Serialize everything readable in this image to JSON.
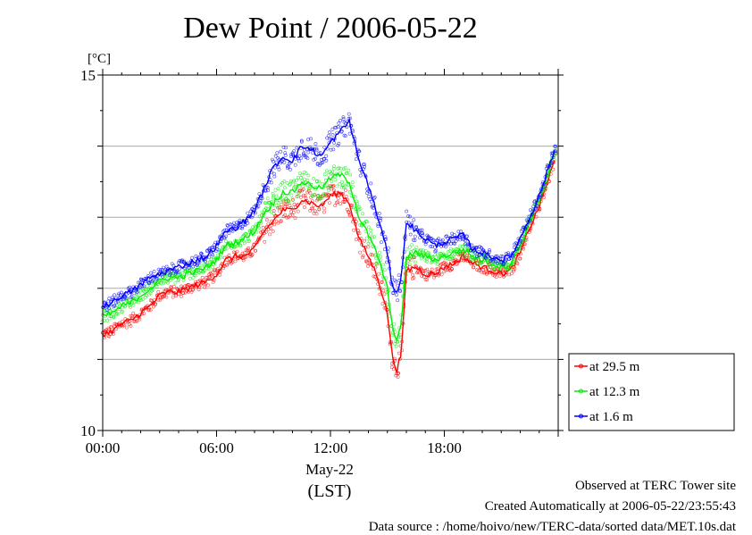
{
  "chart_data": {
    "type": "line",
    "title": "Dew Point / 2006-05-22",
    "ylabel": "[°C]",
    "xlabel": "(LST)",
    "date_label": "May-22",
    "ylim": [
      10,
      15
    ],
    "yticks": [
      10,
      15
    ],
    "xlim_hours": [
      0,
      24
    ],
    "xtick_labels": [
      "00:00",
      "06:00",
      "12:00",
      "18:00"
    ],
    "grid": "horizontal",
    "legend_position": "bottom-right",
    "series": [
      {
        "name": "at 29.5 m",
        "color": "#ff0000",
        "x": [
          0,
          0.5,
          1,
          1.5,
          2,
          2.5,
          3,
          3.5,
          4,
          4.5,
          5,
          5.5,
          6,
          6.5,
          7,
          7.5,
          8,
          8.5,
          9,
          9.5,
          10,
          10.5,
          11,
          11.5,
          12,
          12.5,
          13,
          13.5,
          14,
          14.5,
          15,
          15.25,
          15.5,
          15.75,
          16,
          16.5,
          17,
          17.5,
          18,
          18.5,
          19,
          19.5,
          20,
          20.5,
          21,
          21.5,
          22,
          22.5,
          23,
          23.5
        ],
        "y": [
          11.35,
          11.4,
          11.5,
          11.55,
          11.65,
          11.75,
          11.9,
          11.95,
          11.95,
          12.0,
          12.05,
          12.1,
          12.2,
          12.4,
          12.45,
          12.45,
          12.55,
          12.8,
          12.95,
          13.1,
          13.1,
          13.25,
          13.2,
          13.15,
          13.3,
          13.35,
          13.2,
          12.7,
          12.45,
          12.15,
          11.65,
          11.05,
          10.85,
          11.1,
          12.25,
          12.3,
          12.2,
          12.2,
          12.3,
          12.35,
          12.45,
          12.35,
          12.3,
          12.25,
          12.2,
          12.25,
          12.5,
          12.85,
          13.15,
          13.55
        ]
      },
      {
        "name": "at 12.3 m",
        "color": "#00ee00",
        "x": [
          0,
          0.5,
          1,
          1.5,
          2,
          2.5,
          3,
          3.5,
          4,
          4.5,
          5,
          5.5,
          6,
          6.5,
          7,
          7.5,
          8,
          8.5,
          9,
          9.5,
          10,
          10.5,
          11,
          11.5,
          12,
          12.5,
          13,
          13.5,
          14,
          14.5,
          15,
          15.25,
          15.5,
          15.75,
          16,
          16.5,
          17,
          17.5,
          18,
          18.5,
          19,
          19.5,
          20,
          20.5,
          21,
          21.5,
          22,
          22.5,
          23,
          23.5
        ],
        "y": [
          11.6,
          11.65,
          11.75,
          11.8,
          11.9,
          12.0,
          12.1,
          12.15,
          12.15,
          12.2,
          12.25,
          12.3,
          12.4,
          12.6,
          12.65,
          12.7,
          12.8,
          13.05,
          13.2,
          13.35,
          13.35,
          13.5,
          13.45,
          13.4,
          13.55,
          13.6,
          13.5,
          13.0,
          12.75,
          12.45,
          12.0,
          11.45,
          11.3,
          11.5,
          12.45,
          12.5,
          12.45,
          12.4,
          12.45,
          12.5,
          12.55,
          12.45,
          12.4,
          12.35,
          12.3,
          12.35,
          12.6,
          12.95,
          13.25,
          13.65
        ]
      },
      {
        "name": "at 1.6 m",
        "color": "#0000ff",
        "x": [
          0,
          0.5,
          1,
          1.5,
          2,
          2.5,
          3,
          3.5,
          4,
          4.5,
          5,
          5.5,
          6,
          6.5,
          7,
          7.5,
          8,
          8.5,
          9,
          9.5,
          10,
          10.5,
          11,
          11.5,
          12,
          12.5,
          13,
          13.5,
          14,
          14.5,
          15,
          15.25,
          15.5,
          15.75,
          16,
          16.5,
          17,
          17.5,
          18,
          18.5,
          19,
          19.5,
          20,
          20.5,
          21,
          21.5,
          22,
          22.5,
          23,
          23.5
        ],
        "y": [
          11.75,
          11.8,
          11.9,
          11.95,
          12.05,
          12.15,
          12.2,
          12.25,
          12.3,
          12.35,
          12.4,
          12.45,
          12.6,
          12.8,
          12.85,
          12.95,
          13.1,
          13.4,
          13.7,
          13.85,
          13.8,
          14.0,
          13.95,
          13.85,
          14.05,
          14.2,
          14.35,
          13.8,
          13.45,
          13.0,
          12.5,
          12.05,
          11.95,
          12.15,
          12.95,
          12.8,
          12.7,
          12.6,
          12.65,
          12.7,
          12.75,
          12.55,
          12.5,
          12.45,
          12.4,
          12.45,
          12.7,
          13.0,
          13.3,
          13.7
        ]
      }
    ]
  },
  "footer": {
    "observed": "Observed at TERC Tower site",
    "created": "Created Automatically at 2006-05-22/23:55:43",
    "source": "Data source : /home/hoivo/new/TERC-data/sorted  data/MET.10s.dat"
  }
}
